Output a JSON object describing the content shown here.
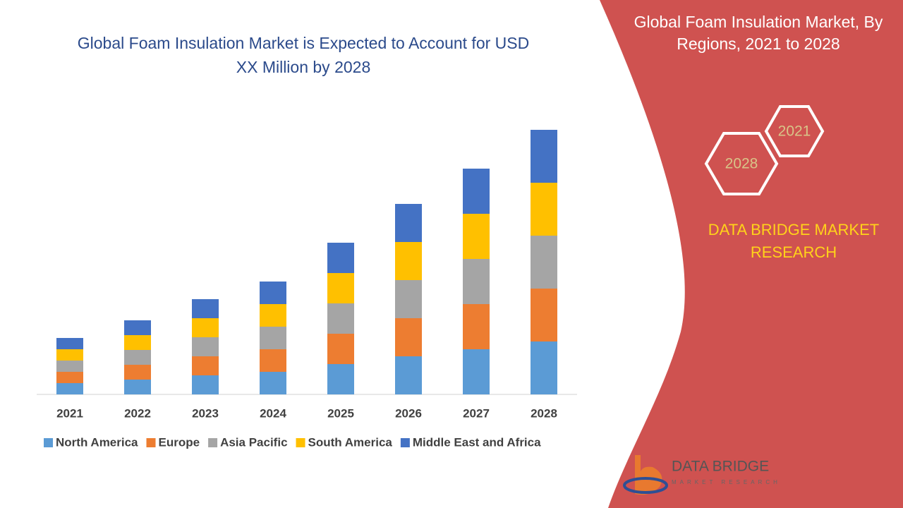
{
  "chart_data": {
    "type": "bar",
    "stacked": true,
    "title": "Global Foam Insulation Market is Expected to Account for USD XX Million by 2028",
    "categories": [
      "2021",
      "2022",
      "2023",
      "2024",
      "2025",
      "2026",
      "2027",
      "2028"
    ],
    "series": [
      {
        "name": "North America",
        "color": "#5b9bd5",
        "values": [
          16,
          21,
          27,
          32,
          43,
          54,
          64,
          75
        ]
      },
      {
        "name": "Europe",
        "color": "#ed7d31",
        "values": [
          16,
          21,
          27,
          32,
          43,
          54,
          64,
          75
        ]
      },
      {
        "name": "Asia Pacific",
        "color": "#a5a5a5",
        "values": [
          16,
          21,
          27,
          32,
          43,
          54,
          64,
          75
        ]
      },
      {
        "name": "South America",
        "color": "#ffc000",
        "values": [
          16,
          21,
          27,
          32,
          43,
          54,
          64,
          75
        ]
      },
      {
        "name": "Middle East and Africa",
        "color": "#4472c4",
        "values": [
          16,
          21,
          27,
          32,
          43,
          54,
          64,
          75
        ]
      }
    ],
    "legend": "bottom"
  },
  "side": {
    "title": "Global Foam Insulation Market, By Regions, 2021 to 2028",
    "hex_labels": [
      "2021",
      "2028"
    ],
    "brand": "DATA BRIDGE MARKET RESEARCH",
    "logo_name": "DATA BRIDGE",
    "logo_tagline": "MARKET RESEARCH"
  }
}
